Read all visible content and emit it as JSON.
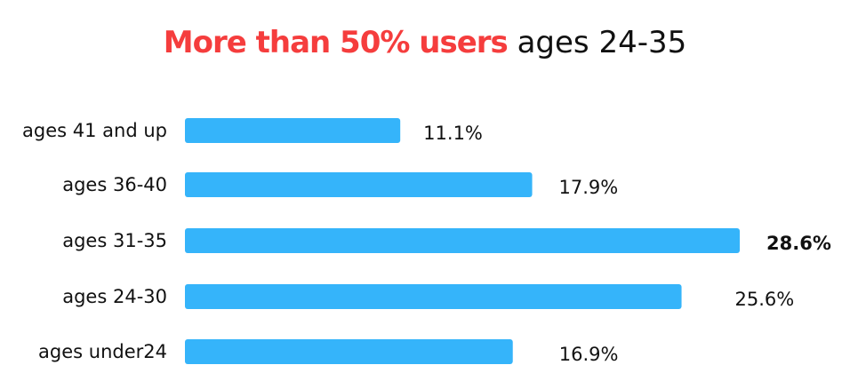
{
  "chart_data": {
    "type": "bar",
    "orientation": "horizontal",
    "title": {
      "highlight": "More than 50% users",
      "rest": "ages 24-35"
    },
    "categories": [
      "ages 41 and up",
      "ages 36-40",
      "ages 31-35",
      "ages 24-30",
      "ages under24"
    ],
    "values": [
      11.1,
      17.9,
      28.6,
      25.6,
      16.9
    ],
    "value_labels": [
      "11.1%",
      "17.9%",
      "28.6%",
      "25.6%",
      "16.9%"
    ],
    "unit": "%",
    "highlight_index": 2,
    "xlabel": "",
    "ylabel": "",
    "grid": false,
    "legend": "none",
    "colors": {
      "bar": "#35b4fa",
      "highlight_text": "#f53d3d",
      "text": "#111111"
    }
  }
}
